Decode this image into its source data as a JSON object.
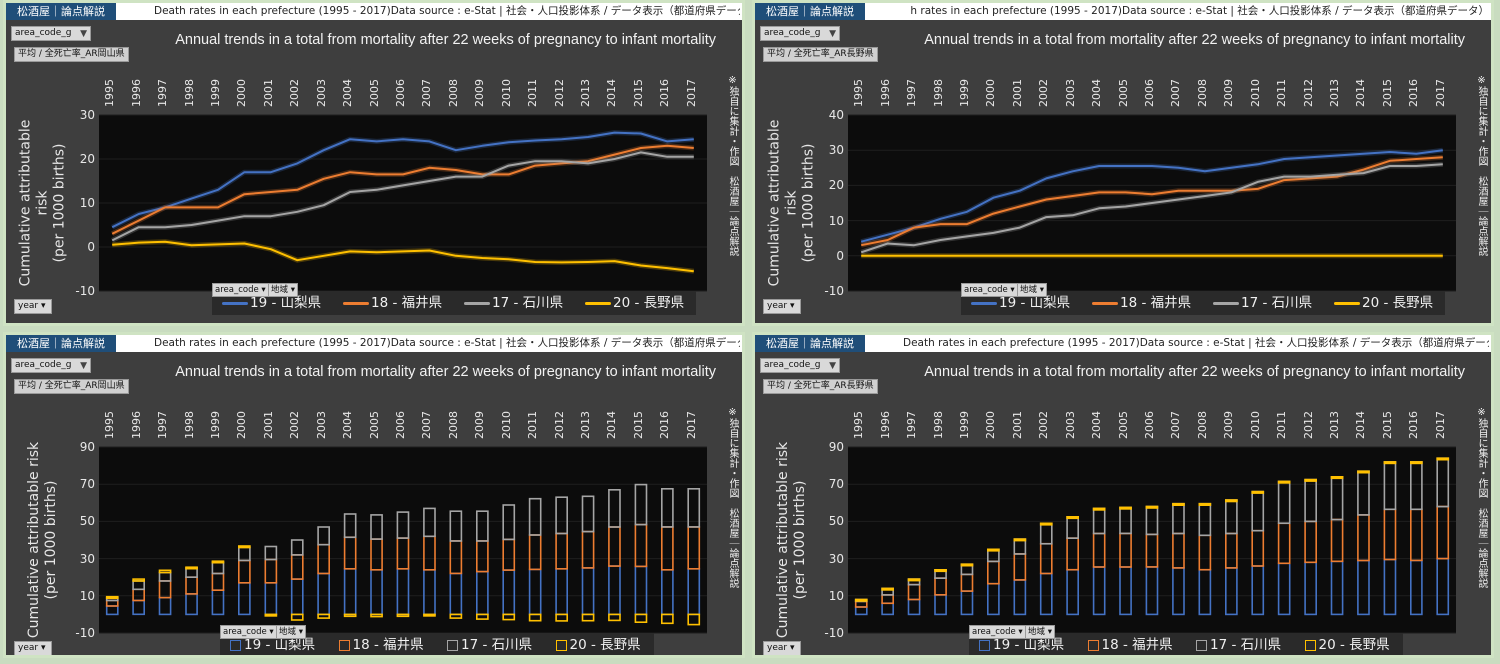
{
  "brand": "松酒屋｜論点解説",
  "headers": {
    "full": "Death rates in each prefecture (1995 - 2017)Data source : e-Stat | 社会・人口投影体系 / データ表示（都道府県データ）",
    "cut": "h rates in each prefecture (1995 - 2017)Data source : e-Stat | 社会・人口投影体系 / データ表示（都道府県データ）"
  },
  "filter_label": "area_code_g",
  "subtitles": {
    "okayama": "平均 / 全死亡率_AR岡山県",
    "nagano": "平均 / 全死亡率_AR長野県"
  },
  "chart_title": "Annual trends in a total from mortality after 22 weeks of pregnancy to infant mortality",
  "side_note": "※独自に集計・作図　松酒屋｜論点解説",
  "y_label_line1": "Cumulative attributable risk",
  "y_label_line2": "(per 1000 births)",
  "area_code_button": "area_code",
  "chiiki_button": "地域",
  "year_button": "year",
  "dropdown_arrow": "▾",
  "filter_icon": "funnel-icon",
  "colors": {
    "yamanashi": "#4472c4",
    "fukui": "#ed7d31",
    "ishikawa": "#a5a5a5",
    "nagano": "#ffc000",
    "plot_bg": "#0c0c0c",
    "panel_bg": "#3e3e3e"
  },
  "chart_data": [
    {
      "type": "line",
      "title": "Annual trends in a total from mortality after 22 weeks of pregnancy to infant mortality",
      "ylabel": "Cumulative attributable risk (per 1000 births)",
      "ylim": [
        -10,
        30
      ],
      "yticks": [
        -10,
        0,
        10,
        20,
        30
      ],
      "x": [
        "1995",
        "1996",
        "1997",
        "1998",
        "1999",
        "2000",
        "2001",
        "2002",
        "2003",
        "2004",
        "2005",
        "2006",
        "2007",
        "2008",
        "2009",
        "2010",
        "2011",
        "2012",
        "2013",
        "2014",
        "2015",
        "2016",
        "2017"
      ],
      "series": [
        {
          "name": "19 - 山梨県",
          "values": [
            4.5,
            7.5,
            9,
            11,
            13,
            17,
            17,
            19,
            22,
            24.5,
            24,
            24.5,
            24,
            22,
            23,
            23.8,
            24.2,
            24.5,
            25,
            26,
            25.8,
            24,
            24.5
          ]
        },
        {
          "name": "18 - 福井県",
          "values": [
            3,
            6,
            9,
            9,
            9,
            12,
            12.5,
            13,
            15.5,
            17,
            16.5,
            16.5,
            18,
            17.5,
            16.5,
            16.5,
            18.5,
            19,
            19.5,
            21,
            22.5,
            23,
            22.5
          ]
        },
        {
          "name": "17 - 石川県",
          "values": [
            1.5,
            4.5,
            4.5,
            5,
            6,
            7,
            7,
            8,
            9.5,
            12.5,
            13,
            14,
            15,
            16,
            16,
            18.5,
            19.5,
            19.5,
            19,
            20,
            21.5,
            20.5,
            20.5
          ]
        },
        {
          "name": "20 - 長野県",
          "values": [
            0.5,
            1,
            1.2,
            0.4,
            0.6,
            0.8,
            -0.5,
            -3,
            -2,
            -1,
            -1.2,
            -1,
            -0.8,
            -2,
            -2.5,
            -2.8,
            -3.4,
            -3.5,
            -3.4,
            -3.2,
            -4.2,
            -4.8,
            -5.5
          ]
        }
      ],
      "legend": "bottom"
    },
    {
      "type": "line",
      "title": "Annual trends in a total from mortality after 22 weeks of pregnancy to infant mortality",
      "ylabel": "Cumulative attributable risk (per 1000 births)",
      "ylim": [
        -10,
        40
      ],
      "yticks": [
        -10,
        0,
        10,
        20,
        30,
        40
      ],
      "x": [
        "1995",
        "1996",
        "1997",
        "1998",
        "1999",
        "2000",
        "2001",
        "2002",
        "2003",
        "2004",
        "2005",
        "2006",
        "2007",
        "2008",
        "2009",
        "2010",
        "2011",
        "2012",
        "2013",
        "2014",
        "2015",
        "2016",
        "2017"
      ],
      "series": [
        {
          "name": "19 - 山梨県",
          "values": [
            4,
            6,
            8,
            10.5,
            12.5,
            16.5,
            18.5,
            22,
            24,
            25.5,
            25.5,
            25.5,
            25,
            24,
            25,
            26,
            27.5,
            28,
            28.5,
            29,
            29.5,
            29,
            30
          ]
        },
        {
          "name": "18 - 福井県",
          "values": [
            3,
            4.5,
            8,
            9,
            9,
            12,
            14,
            16,
            17,
            18,
            18,
            17.5,
            18.5,
            18.5,
            18.5,
            19,
            21.5,
            22,
            22.5,
            24.5,
            27,
            27.5,
            28
          ]
        },
        {
          "name": "17 - 石川県",
          "values": [
            1,
            3.5,
            3,
            4.5,
            5.5,
            6.5,
            8,
            11,
            11.5,
            13.5,
            14,
            15,
            16,
            17,
            18,
            21,
            22.5,
            22.5,
            23,
            23.5,
            25.5,
            25.5,
            26
          ]
        },
        {
          "name": "20 - 長野県",
          "values": [
            0,
            0,
            0,
            0,
            0,
            0,
            0,
            0,
            0,
            0,
            0,
            0,
            0,
            0,
            0,
            0,
            0,
            0,
            0,
            0,
            0,
            0,
            0
          ]
        }
      ],
      "legend": "bottom"
    },
    {
      "type": "bar",
      "stacked": true,
      "title": "Annual trends in a total from mortality after 22 weeks of pregnancy to infant mortality",
      "ylabel": "Cumulative attributable risk (per 1000 births)",
      "ylim": [
        -10,
        90
      ],
      "yticks": [
        -10,
        10,
        30,
        50,
        70,
        90
      ],
      "categories": [
        "1995",
        "1996",
        "1997",
        "1998",
        "1999",
        "2000",
        "2001",
        "2002",
        "2003",
        "2004",
        "2005",
        "2006",
        "2007",
        "2008",
        "2009",
        "2010",
        "2011",
        "2012",
        "2013",
        "2014",
        "2015",
        "2016",
        "2017"
      ],
      "series": [
        {
          "name": "19 - 山梨県",
          "values": [
            4.5,
            7.5,
            9,
            11,
            13,
            17,
            17,
            19,
            22,
            24.5,
            24,
            24.5,
            24,
            22,
            23,
            23.8,
            24.2,
            24.5,
            25,
            26,
            25.8,
            24,
            24.5
          ]
        },
        {
          "name": "18 - 福井県",
          "values": [
            3,
            6,
            9,
            9,
            9,
            12,
            12.5,
            13,
            15.5,
            17,
            16.5,
            16.5,
            18,
            17.5,
            16.5,
            16.5,
            18.5,
            19,
            19.5,
            21,
            22.5,
            23,
            22.5
          ]
        },
        {
          "name": "17 - 石川県",
          "values": [
            1.5,
            4.5,
            4.5,
            5,
            6,
            7,
            7,
            8,
            9.5,
            12.5,
            13,
            14,
            15,
            16,
            16,
            18.5,
            19.5,
            19.5,
            19,
            20,
            21.5,
            20.5,
            20.5
          ]
        },
        {
          "name": "20 - 長野県",
          "values": [
            0.5,
            1,
            1.2,
            0.4,
            0.6,
            0.8,
            -0.5,
            -3,
            -2,
            -1,
            -1.2,
            -1,
            -0.8,
            -2,
            -2.5,
            -2.8,
            -3.4,
            -3.5,
            -3.4,
            -3.2,
            -4.2,
            -4.8,
            -5.5
          ]
        }
      ],
      "legend": "bottom"
    },
    {
      "type": "bar",
      "stacked": true,
      "title": "Annual trends in a total from mortality after 22 weeks of pregnancy to infant mortality",
      "ylabel": "Cumulative attributable risk (per 1000 births)",
      "ylim": [
        -10,
        90
      ],
      "yticks": [
        -10,
        10,
        30,
        50,
        70,
        90
      ],
      "categories": [
        "1995",
        "1996",
        "1997",
        "1998",
        "1999",
        "2000",
        "2001",
        "2002",
        "2003",
        "2004",
        "2005",
        "2006",
        "2007",
        "2008",
        "2009",
        "2010",
        "2011",
        "2012",
        "2013",
        "2014",
        "2015",
        "2016",
        "2017"
      ],
      "series": [
        {
          "name": "19 - 山梨県",
          "values": [
            4,
            6,
            8,
            10.5,
            12.5,
            16.5,
            18.5,
            22,
            24,
            25.5,
            25.5,
            25.5,
            25,
            24,
            25,
            26,
            27.5,
            28,
            28.5,
            29,
            29.5,
            29,
            30
          ]
        },
        {
          "name": "18 - 福井県",
          "values": [
            3,
            4.5,
            8,
            9,
            9,
            12,
            14,
            16,
            17,
            18,
            18,
            17.5,
            18.5,
            18.5,
            18.5,
            19,
            21.5,
            22,
            22.5,
            24.5,
            27,
            27.5,
            28
          ]
        },
        {
          "name": "17 - 石川県",
          "values": [
            1,
            3.5,
            3,
            4.5,
            5.5,
            6.5,
            8,
            11,
            11.5,
            13.5,
            14,
            15,
            16,
            17,
            18,
            21,
            22.5,
            22.5,
            23,
            23.5,
            25.5,
            25.5,
            26
          ]
        },
        {
          "name": "20 - 長野県",
          "values": [
            0,
            0,
            0,
            0,
            0,
            0,
            0,
            0,
            0,
            0,
            0,
            0,
            0,
            0,
            0,
            0,
            0,
            0,
            0,
            0,
            0,
            0,
            0
          ]
        }
      ],
      "legend": "bottom"
    }
  ]
}
